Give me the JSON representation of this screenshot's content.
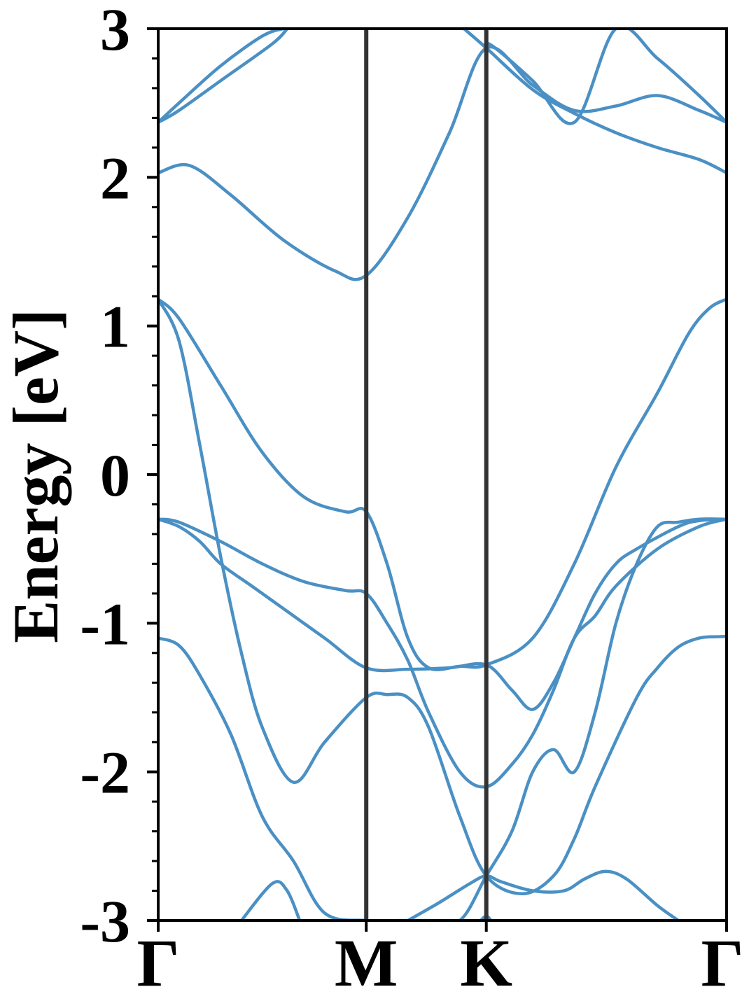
{
  "chart_data": {
    "type": "line",
    "title": "",
    "xlabel": "",
    "ylabel": "Energy [eV]",
    "ylim": [
      -3,
      3
    ],
    "yticks": [
      "3",
      "2",
      "1",
      "0",
      "-1",
      "-2",
      "-3"
    ],
    "grid": false,
    "legend": "none",
    "line_color": "#4a90c4",
    "kpath_line_color": "#333333",
    "kpoints": [
      {
        "label": "Γ",
        "k": 0.0
      },
      {
        "label": "M",
        "k": 1.0
      },
      {
        "label": "K",
        "k": 1.577
      },
      {
        "label": "Γ",
        "k": 2.732
      }
    ],
    "series": [
      {
        "x": [
          0.0,
          0.1,
          0.3,
          0.5,
          0.6
        ],
        "y": [
          2.37,
          2.5,
          2.75,
          2.95,
          3.0
        ]
      },
      {
        "x": [
          0.0,
          0.1,
          0.3,
          0.55,
          0.62
        ],
        "y": [
          2.37,
          2.45,
          2.65,
          2.9,
          3.0
        ]
      },
      {
        "x": [
          0.0,
          0.15,
          0.35,
          0.6,
          0.85,
          1.0,
          1.2,
          1.4,
          1.577,
          1.8,
          2.0,
          2.2,
          2.4,
          2.6,
          2.732
        ],
        "y": [
          2.03,
          2.08,
          1.88,
          1.58,
          1.37,
          1.34,
          1.73,
          2.3,
          2.87,
          2.62,
          2.45,
          2.48,
          2.55,
          2.45,
          2.37
        ]
      },
      {
        "x": [
          1.47,
          1.577,
          1.8,
          2.0,
          2.2,
          2.4,
          2.6,
          2.732
        ],
        "y": [
          3.0,
          2.87,
          2.59,
          2.43,
          2.3,
          2.2,
          2.12,
          2.03
        ]
      },
      {
        "x": [
          1.57,
          1.6,
          1.8,
          2.0,
          2.2,
          2.4,
          2.6,
          2.732
        ],
        "y": [
          2.86,
          2.89,
          2.65,
          2.37,
          3.0,
          2.8,
          2.55,
          2.37
        ]
      },
      {
        "x": [
          0.0,
          0.1,
          0.3,
          0.5,
          0.7,
          0.9,
          1.0,
          1.1,
          1.2,
          1.3,
          1.45,
          1.577,
          1.8,
          2.0,
          2.2,
          2.4,
          2.55,
          2.65,
          2.732
        ],
        "y": [
          1.18,
          1.05,
          0.6,
          0.15,
          -0.15,
          -0.25,
          -0.25,
          -0.6,
          -1.1,
          -1.3,
          -1.29,
          -1.28,
          -1.1,
          -0.6,
          0.05,
          0.55,
          0.95,
          1.12,
          1.18
        ]
      },
      {
        "x": [
          0.0,
          0.1,
          0.2,
          0.3,
          0.4,
          0.5,
          0.65,
          0.8,
          1.0,
          1.1,
          1.2,
          1.3,
          1.45,
          1.577,
          1.75,
          1.9,
          2.0,
          2.1,
          2.3,
          2.4,
          2.5,
          2.6,
          2.7,
          2.732
        ],
        "y": [
          1.18,
          0.9,
          0.2,
          -0.55,
          -1.2,
          -1.7,
          -2.07,
          -1.8,
          -1.5,
          -1.48,
          -1.5,
          -1.7,
          -2.3,
          -2.7,
          -2.82,
          -2.7,
          -2.45,
          -2.1,
          -1.5,
          -1.3,
          -1.16,
          -1.1,
          -1.09,
          -1.09
        ]
      },
      {
        "x": [
          0.0,
          0.1,
          0.3,
          0.5,
          0.7,
          0.9,
          1.0,
          1.1,
          1.2,
          1.3,
          1.45,
          1.577,
          1.7,
          1.8,
          1.9,
          2.0,
          2.1,
          2.2,
          2.4,
          2.6,
          2.732
        ],
        "y": [
          -0.3,
          -0.32,
          -0.45,
          -0.6,
          -0.72,
          -0.78,
          -0.8,
          -1.0,
          -1.25,
          -1.6,
          -2.0,
          -2.1,
          -1.95,
          -1.75,
          -1.45,
          -1.1,
          -0.95,
          -0.75,
          -0.5,
          -0.35,
          -0.3
        ]
      },
      {
        "x": [
          0.0,
          0.1,
          0.2,
          0.3,
          0.45,
          0.6,
          0.8,
          1.0,
          1.2,
          1.4,
          1.577,
          1.7,
          1.8,
          1.9,
          2.0,
          2.1,
          2.2,
          2.3,
          2.5,
          2.6,
          2.732
        ],
        "y": [
          -0.3,
          -0.35,
          -0.45,
          -0.6,
          -0.75,
          -0.9,
          -1.1,
          -1.3,
          -1.31,
          -1.3,
          -1.28,
          -1.45,
          -1.58,
          -1.4,
          -1.1,
          -0.8,
          -0.6,
          -0.5,
          -0.35,
          -0.31,
          -0.3
        ]
      },
      {
        "x": [
          0.0,
          0.1,
          0.2,
          0.35,
          0.5,
          0.65,
          0.8,
          1.0,
          1.15,
          1.3,
          1.45,
          1.577,
          1.7,
          1.8,
          1.9,
          2.0,
          2.1,
          2.2,
          2.3,
          2.4,
          2.5,
          2.6,
          2.732
        ],
        "y": [
          -1.1,
          -1.15,
          -1.35,
          -1.75,
          -2.3,
          -2.6,
          -2.95,
          -3.0,
          -3.0,
          -3.0,
          -3.0,
          -2.7,
          -2.4,
          -2.0,
          -1.85,
          -2.0,
          -1.6,
          -1.0,
          -0.6,
          -0.35,
          -0.32,
          -0.3,
          -0.3
        ]
      },
      {
        "x": [
          0.4,
          0.55,
          0.62,
          0.68
        ],
        "y": [
          -3.0,
          -2.75,
          -2.8,
          -3.0
        ]
      },
      {
        "x": [
          1.2,
          1.35,
          1.5,
          1.577,
          1.65,
          1.8,
          1.95,
          2.05,
          2.15,
          2.25,
          2.4,
          2.5
        ],
        "y": [
          -3.0,
          -2.88,
          -2.75,
          -2.7,
          -2.74,
          -2.8,
          -2.8,
          -2.72,
          -2.67,
          -2.72,
          -2.9,
          -3.0
        ]
      },
      {
        "x": [
          1.55,
          1.577,
          1.6
        ],
        "y": [
          -3.0,
          -2.97,
          -3.0
        ]
      }
    ]
  }
}
